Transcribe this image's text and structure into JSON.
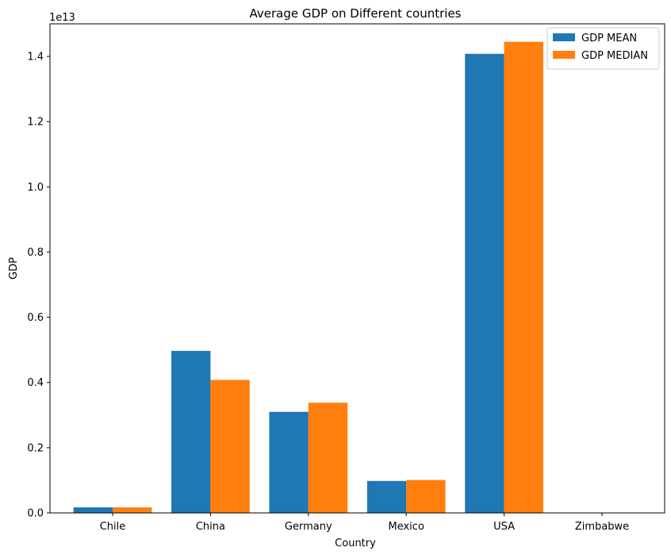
{
  "chart_data": {
    "type": "bar",
    "title": "Average  GDP on Different countries",
    "xlabel": "Country",
    "ylabel": "GDP",
    "y_offset_label": "1e13",
    "y_scale_factor": 10000000000000.0,
    "categories": [
      "Chile",
      "China",
      "Germany",
      "Mexico",
      "USA",
      "Zimbabwe"
    ],
    "series": [
      {
        "name": "GDP MEAN",
        "color": "#1f77b4",
        "values": [
          170000000000.0,
          4970000000000.0,
          3100000000000.0,
          980000000000.0,
          14080000000000.0,
          12000000000.0
        ]
      },
      {
        "name": "GDP MEDIAN",
        "color": "#ff7f0e",
        "values": [
          170000000000.0,
          4080000000000.0,
          3380000000000.0,
          1010000000000.0,
          14450000000000.0,
          12000000000.0
        ]
      }
    ],
    "ylim": [
      0,
      15000000000000.0
    ],
    "yticks": [
      "0.0",
      "0.2",
      "0.4",
      "0.6",
      "0.8",
      "1.0",
      "1.2",
      "1.4"
    ],
    "ytick_values": [
      0,
      2000000000000.0,
      4000000000000.0,
      6000000000000.0,
      8000000000000.0,
      10000000000000.0,
      12000000000000.0,
      14000000000000.0
    ],
    "grid": false,
    "legend_position": "top-right"
  }
}
